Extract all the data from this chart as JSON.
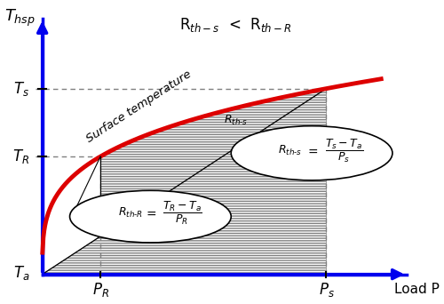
{
  "curve_color": "#dd0000",
  "axis_color": "#0000ee",
  "background_color": "#ffffff",
  "Ta": 0.0,
  "TR": 0.52,
  "Ts": 0.82,
  "PR": 0.18,
  "Ps": 0.88,
  "surface_temp_label": "Surface temperature",
  "title_text": "R$_{th-s}$  <  R$_{th-R}$",
  "xlabel": "Load P",
  "ylabel": "T$_{hsp}$"
}
